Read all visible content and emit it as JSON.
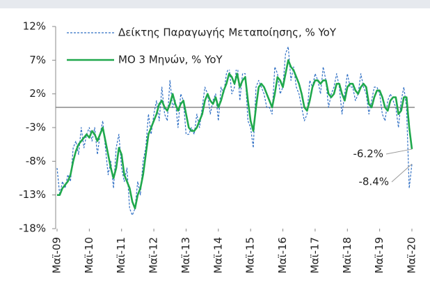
{
  "chart_data": {
    "type": "line",
    "categories": [
      "Μαϊ-09",
      null,
      null,
      null,
      null,
      null,
      null,
      null,
      null,
      null,
      null,
      null,
      "Μαϊ-10",
      null,
      null,
      null,
      null,
      null,
      null,
      null,
      null,
      null,
      null,
      null,
      "Μαϊ-11",
      null,
      null,
      null,
      null,
      null,
      null,
      null,
      null,
      null,
      null,
      null,
      "Μαϊ-12",
      null,
      null,
      null,
      null,
      null,
      null,
      null,
      null,
      null,
      null,
      null,
      "Μαϊ-13",
      null,
      null,
      null,
      null,
      null,
      null,
      null,
      null,
      null,
      null,
      null,
      "Μαϊ-14",
      null,
      null,
      null,
      null,
      null,
      null,
      null,
      null,
      null,
      null,
      null,
      "Μαϊ-15",
      null,
      null,
      null,
      null,
      null,
      null,
      null,
      null,
      null,
      null,
      null,
      "Μαϊ-16",
      null,
      null,
      null,
      null,
      null,
      null,
      null,
      null,
      null,
      null,
      null,
      "Μαϊ-17",
      null,
      null,
      null,
      null,
      null,
      null,
      null,
      null,
      null,
      null,
      null,
      "Μαϊ-18",
      null,
      null,
      null,
      null,
      null,
      null,
      null,
      null,
      null,
      null,
      null,
      "Μαϊ-19",
      null,
      null,
      null,
      null,
      null,
      null,
      null,
      null,
      null,
      null,
      null,
      "Μαϊ-20"
    ],
    "series": [
      {
        "name": "Δείκτης Παραγωγής Μεταποίησης, % YoY",
        "color": "#2f6fc4",
        "dashed": true,
        "values": [
          -9,
          -13,
          -11,
          -12,
          -10,
          -11,
          -6,
          -5,
          -7,
          -3,
          -6,
          -4,
          -3,
          -5,
          -3,
          -7,
          -4,
          -2,
          -6,
          -10,
          -8,
          -12,
          -6,
          -4,
          -9,
          -11,
          -9,
          -15,
          -16,
          -15,
          -11,
          -13,
          -8,
          -6,
          -1,
          -4,
          -1,
          1,
          -2,
          3,
          -1,
          -2,
          4,
          0,
          1,
          -3,
          2,
          1,
          -4,
          -4,
          -3,
          -4,
          -1,
          -3,
          0,
          3,
          2,
          -1,
          1,
          2,
          -2,
          3,
          2,
          5,
          6,
          2,
          3,
          7,
          1,
          5,
          5,
          -2,
          -3,
          -6,
          3,
          4,
          3,
          2,
          0,
          0,
          -1,
          6,
          5,
          2,
          3,
          8,
          9,
          4,
          6,
          3,
          2,
          0,
          -2,
          -1,
          4,
          3,
          5,
          4,
          2,
          6,
          4,
          0,
          2,
          3,
          5,
          3,
          -1,
          2,
          5,
          3,
          3,
          1,
          2,
          5,
          3,
          2,
          -1,
          1,
          3,
          3,
          2,
          -1,
          -2,
          1,
          2,
          1,
          0,
          -3,
          1,
          3,
          0,
          -12,
          -8.4
        ]
      },
      {
        "name": "ΜΟ 3 Μηνών, % YoY",
        "color": "#1fa84c",
        "dashed": false,
        "values": [
          -13,
          -13,
          -12,
          -11.5,
          -11,
          -10,
          -8,
          -6.5,
          -5.5,
          -5,
          -4.5,
          -4,
          -4.5,
          -3.5,
          -4,
          -5,
          -4,
          -3,
          -5,
          -7,
          -9,
          -10.5,
          -9,
          -6,
          -7,
          -10,
          -11,
          -12,
          -14,
          -15,
          -13,
          -12,
          -10,
          -7,
          -4,
          -3,
          -2,
          -1,
          0.5,
          1,
          0,
          -0.5,
          0.5,
          2,
          0.5,
          -0.5,
          0.5,
          1,
          -1,
          -3,
          -3.5,
          -3.5,
          -3,
          -2,
          -1,
          1,
          2,
          1,
          0.5,
          1.5,
          0,
          1,
          2.5,
          3.5,
          5,
          4.5,
          3.5,
          5,
          3,
          4,
          4.5,
          1,
          -2,
          -3.5,
          0,
          3,
          3.5,
          3,
          2,
          1,
          0,
          2,
          4.5,
          4,
          3,
          5,
          7,
          6,
          5.5,
          4.5,
          3.5,
          2,
          0,
          -0.5,
          1,
          3,
          4,
          4,
          3.5,
          4,
          4,
          2,
          1.5,
          2,
          3.5,
          3.5,
          2,
          1,
          3,
          3.5,
          3.5,
          2.5,
          2,
          3,
          3.5,
          3,
          0.5,
          0,
          1.5,
          2.5,
          2.5,
          1.5,
          0,
          -0.5,
          1,
          1.5,
          1.5,
          -1,
          -0.5,
          1.5,
          1.5,
          -3,
          -6.2
        ]
      }
    ],
    "annotations": [
      "-6.2%",
      "-8.4%"
    ],
    "ylim": [
      -18,
      12
    ],
    "yticks": [
      {
        "value": -18,
        "label": "-18%"
      },
      {
        "value": -13,
        "label": "-13%"
      },
      {
        "value": -8,
        "label": "-8%"
      },
      {
        "value": -3,
        "label": "-3%"
      },
      {
        "value": 2,
        "label": "2%"
      },
      {
        "value": 7,
        "label": "7%"
      },
      {
        "value": 12,
        "label": "12%"
      }
    ]
  }
}
